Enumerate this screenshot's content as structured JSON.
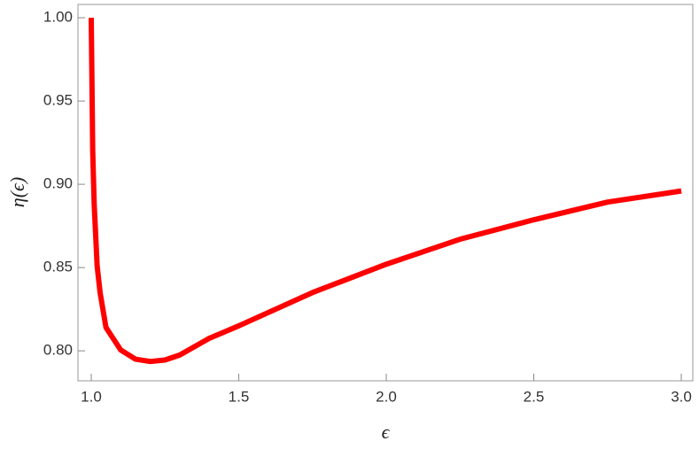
{
  "chart_data": {
    "type": "line",
    "xlabel": "ϵ",
    "ylabel": "η(ϵ)",
    "x": [
      1.0,
      1.005,
      1.01,
      1.02,
      1.03,
      1.05,
      1.1,
      1.15,
      1.2,
      1.25,
      1.3,
      1.4,
      1.5,
      1.75,
      2.0,
      2.25,
      2.5,
      2.75,
      3.0
    ],
    "series": [
      {
        "color": "#ff0000",
        "values": [
          1.0,
          0.92,
          0.888,
          0.851,
          0.835,
          0.814,
          0.8005,
          0.795,
          0.7936,
          0.7945,
          0.7975,
          0.8075,
          0.815,
          0.835,
          0.852,
          0.867,
          0.8787,
          0.8893,
          0.896
        ]
      }
    ],
    "xlim": [
      0.955,
      3.039
    ],
    "ylim": [
      0.782,
      1.008
    ],
    "xticks": [
      {
        "value": 1,
        "label": "1.0"
      },
      1.5,
      {
        "value": 2,
        "label": "2.0"
      },
      2.5,
      {
        "value": 3,
        "label": "3.0"
      }
    ],
    "yticks": [
      {
        "value": 0.8,
        "label": "0.80"
      },
      0.85,
      {
        "value": 0.9,
        "label": "0.90"
      },
      0.95,
      {
        "value": 1,
        "label": "1.00"
      }
    ]
  }
}
